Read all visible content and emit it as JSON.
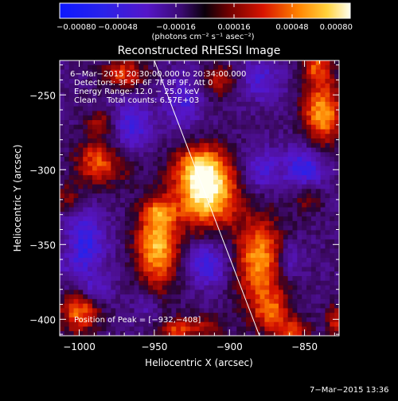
{
  "chart_data": {
    "type": "heatmap",
    "title": "Reconstructed RHESSI Image",
    "xlabel": "Heliocentric X (arcsec)",
    "ylabel": "Heliocentric Y (arcsec)",
    "xlim": [
      -1013,
      -827
    ],
    "ylim": [
      -411,
      -227
    ],
    "x_ticks": [
      -1000,
      -950,
      -900,
      -850
    ],
    "x_tick_labels": [
      "−1000",
      "−950",
      "−900",
      "−850"
    ],
    "y_ticks": [
      -400,
      -350,
      -300,
      -250
    ],
    "y_tick_labels": [
      "−400",
      "−350",
      "−300",
      "−250"
    ],
    "colorbar": {
      "range": [
        -0.0008,
        0.0008
      ],
      "ticks": [
        -0.0008,
        -0.00048,
        -0.00016,
        0.00016,
        0.00048,
        0.0008
      ],
      "tick_labels": [
        "−0.00080",
        "−0.00048",
        "−0.00016",
        "0.00016",
        "0.00048",
        "0.00080"
      ],
      "units": "(photons cm⁻² s⁻¹ asec⁻²)"
    },
    "annotations": {
      "time": "6−Mar−2015 20:30:00.000 to 20:34:00.000",
      "detectors": "Detectors: 3F 5F 6F 7F 8F 9F, Att 0",
      "energy": "Energy Range: 12.0 − 25.0 keV",
      "method": "Clean    Total counts: 6.57E+03",
      "peak": "Position of Peak = [−932,−408]"
    },
    "peak_position": [
      -932,
      -408
    ],
    "limb_line": [
      [
        -950,
        -227
      ],
      [
        -880,
        -411
      ]
    ],
    "sources": [
      {
        "x": -915,
        "y": -315,
        "sx": 14,
        "sy": 16,
        "amp": 0.00092
      },
      {
        "x": -920,
        "y": -297,
        "sx": 11,
        "sy": 10,
        "amp": 0.00045
      },
      {
        "x": -948,
        "y": -350,
        "sx": 10,
        "sy": 20,
        "amp": 0.00074
      },
      {
        "x": -947,
        "y": -328,
        "sx": 7,
        "sy": 5,
        "amp": 0.00028
      },
      {
        "x": -880,
        "y": -360,
        "sx": 11,
        "sy": 20,
        "amp": 0.00065
      },
      {
        "x": -872,
        "y": -395,
        "sx": 9,
        "sy": 10,
        "amp": 0.00045
      },
      {
        "x": -838,
        "y": -262,
        "sx": 9,
        "sy": 15,
        "amp": 0.00068
      },
      {
        "x": -842,
        "y": -230,
        "sx": 7,
        "sy": 8,
        "amp": 0.00045
      },
      {
        "x": -988,
        "y": -295,
        "sx": 10,
        "sy": 11,
        "amp": 0.0005
      },
      {
        "x": -1008,
        "y": -320,
        "sx": 6,
        "sy": 8,
        "amp": 0.0003
      },
      {
        "x": -985,
        "y": -268,
        "sx": 7,
        "sy": 6,
        "amp": 0.00032
      },
      {
        "x": -1000,
        "y": -395,
        "sx": 9,
        "sy": 10,
        "amp": 0.00055
      },
      {
        "x": -970,
        "y": -236,
        "sx": 10,
        "sy": 7,
        "amp": 0.00045
      },
      {
        "x": -905,
        "y": -240,
        "sx": 9,
        "sy": 8,
        "amp": 0.00035
      },
      {
        "x": -848,
        "y": -318,
        "sx": 7,
        "sy": 8,
        "amp": 0.0003
      },
      {
        "x": -858,
        "y": -408,
        "sx": 8,
        "sy": 6,
        "amp": 0.0004
      },
      {
        "x": -830,
        "y": -400,
        "sx": 4,
        "sy": 7,
        "amp": 0.0004
      },
      {
        "x": -920,
        "y": -405,
        "sx": 12,
        "sy": 6,
        "amp": 0.0003
      },
      {
        "x": -937,
        "y": -408,
        "sx": 7,
        "sy": 5,
        "amp": 0.00035
      },
      {
        "x": -1008,
        "y": -350,
        "sx": 5,
        "sy": 8,
        "amp": 0.00025
      },
      {
        "x": -968,
        "y": -300,
        "sx": 7,
        "sy": 7,
        "amp": 0.00012
      },
      {
        "x": -1000,
        "y": -350,
        "sx": 12,
        "sy": 15,
        "amp": -0.00045
      },
      {
        "x": -990,
        "y": -380,
        "sx": 8,
        "sy": 6,
        "amp": -0.00025
      },
      {
        "x": -965,
        "y": -270,
        "sx": 10,
        "sy": 12,
        "amp": -0.00035
      },
      {
        "x": -930,
        "y": -255,
        "sx": 9,
        "sy": 14,
        "amp": -0.00028
      },
      {
        "x": -915,
        "y": -363,
        "sx": 10,
        "sy": 10,
        "amp": -0.00038
      },
      {
        "x": -850,
        "y": -300,
        "sx": 10,
        "sy": 11,
        "amp": -0.00045
      },
      {
        "x": -860,
        "y": -360,
        "sx": 6,
        "sy": 8,
        "amp": -0.00028
      },
      {
        "x": -880,
        "y": -240,
        "sx": 11,
        "sy": 10,
        "amp": -0.0003
      },
      {
        "x": -880,
        "y": -300,
        "sx": 8,
        "sy": 10,
        "amp": -0.00032
      },
      {
        "x": -955,
        "y": -390,
        "sx": 6,
        "sy": 7,
        "amp": -0.0002
      }
    ]
  },
  "footer": {
    "date": "7−Mar−2015 13:36"
  }
}
